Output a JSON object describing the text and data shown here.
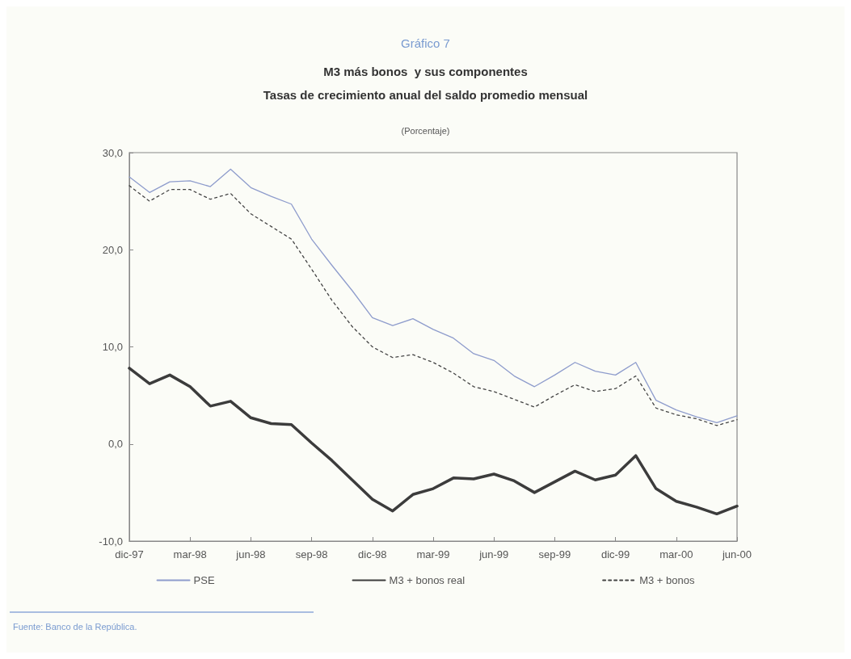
{
  "chart_data": {
    "type": "line",
    "title": "M3 más bonos  y sus componentes",
    "subtitle": "Tasas de crecimiento anual del saldo promedio mensual",
    "annotations": [
      "Gráfico 7",
      "(Porcentaje)",
      "Fuente: Banco de la República."
    ],
    "categories": [
      "dic-97",
      null,
      null,
      "mar-98",
      null,
      null,
      "jun-98",
      null,
      null,
      "sep-98",
      null,
      null,
      "dic-98",
      null,
      null,
      "mar-99",
      null,
      null,
      "jun-99",
      null,
      null,
      "sep-99",
      null,
      null,
      "dic-99",
      null,
      null,
      "mar-00",
      null,
      null,
      "jun-00"
    ],
    "series": [
      {
        "name": "PSE",
        "color": "#8e9ccc",
        "line_style": "solid",
        "values": [
          27.5,
          25.9,
          27.0,
          27.1,
          26.5,
          28.3,
          26.4,
          25.5,
          24.7,
          21.1,
          18.4,
          15.8,
          13.0,
          12.2,
          12.9,
          11.8,
          10.9,
          9.3,
          8.6,
          7.0,
          5.9,
          7.1,
          8.4,
          7.5,
          7.1,
          8.4,
          4.5,
          3.5,
          2.8,
          2.2,
          2.9
        ]
      },
      {
        "name": "M3 + bonos real",
        "color": "#3c3c3c",
        "line_style": "solid",
        "values": [
          7.8,
          6.2,
          7.1,
          5.9,
          3.9,
          4.4,
          2.7,
          2.1,
          2.0,
          0.1,
          -1.7,
          -3.7,
          -5.7,
          -6.9,
          -5.2,
          -4.6,
          -3.5,
          -3.6,
          -3.1,
          -3.8,
          -5.0,
          -3.9,
          -2.8,
          -3.7,
          -3.2,
          -1.2,
          -4.6,
          -5.9,
          -6.5,
          -7.2,
          -6.4
        ]
      },
      {
        "name": "M3 + bonos",
        "color": "#444444",
        "line_style": "dotted",
        "values": [
          26.6,
          25.0,
          26.2,
          26.2,
          25.2,
          25.8,
          23.7,
          22.4,
          21.1,
          18.0,
          14.8,
          12.1,
          10.0,
          8.9,
          9.2,
          8.4,
          7.3,
          5.9,
          5.4,
          4.6,
          3.8,
          5.0,
          6.1,
          5.4,
          5.7,
          7.0,
          3.7,
          3.0,
          2.6,
          1.9,
          2.5
        ]
      }
    ],
    "ylim": [
      -10,
      30
    ],
    "yticks": [
      {
        "value": -10,
        "label": "-10,0"
      },
      {
        "value": 0,
        "label": "0,0"
      },
      {
        "value": 10,
        "label": "10,0"
      },
      {
        "value": 20,
        "label": "20,0"
      },
      {
        "value": 30,
        "label": "30,0"
      }
    ],
    "grid": false,
    "legend": "bottom",
    "marker": "none"
  }
}
